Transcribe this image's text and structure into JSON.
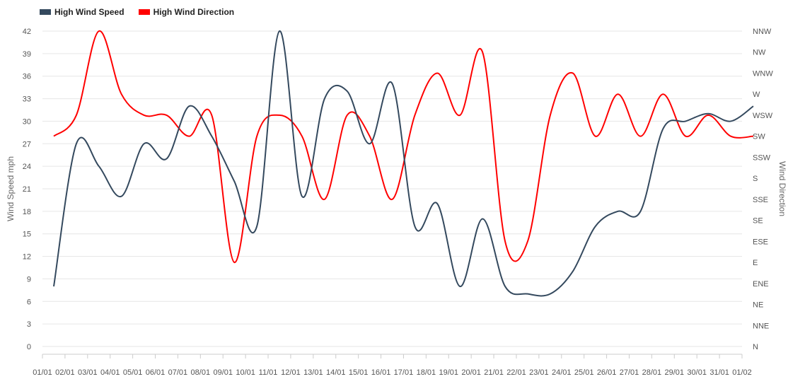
{
  "chart_data": {
    "type": "line",
    "legend_position": "top-left",
    "grid": true,
    "ylabel_left": "Wind Speed mph",
    "ylabel_right": "Wind Direction",
    "left_axis": {
      "ylim": [
        0,
        42
      ],
      "ticks": [
        "0",
        "3",
        "6",
        "9",
        "12",
        "15",
        "18",
        "21",
        "24",
        "27",
        "30",
        "33",
        "36",
        "39",
        "42"
      ]
    },
    "right_axis": {
      "ticks": [
        "N",
        "NNE",
        "NE",
        "ENE",
        "E",
        "ESE",
        "SE",
        "SSE",
        "S",
        "SSW",
        "SW",
        "WSW",
        "W",
        "WNW",
        "NW",
        "NNW"
      ]
    },
    "x_ticks": [
      "01/01",
      "02/01",
      "03/01",
      "04/01",
      "05/01",
      "06/01",
      "07/01",
      "08/01",
      "09/01",
      "10/01",
      "11/01",
      "12/01",
      "13/01",
      "14/01",
      "15/01",
      "16/01",
      "17/01",
      "18/01",
      "19/01",
      "20/01",
      "21/01",
      "22/01",
      "23/01",
      "24/01",
      "25/01",
      "26/01",
      "27/01",
      "28/01",
      "29/01",
      "30/01",
      "31/01",
      "01/02"
    ],
    "series": [
      {
        "name": "High Wind Speed",
        "color": "#34495e",
        "axis": "left",
        "values": [
          8,
          27,
          24,
          20,
          27,
          25,
          32,
          28,
          22,
          16,
          42,
          20,
          33,
          34,
          27,
          35,
          16,
          19,
          8,
          17,
          8,
          7,
          7,
          10,
          16,
          18,
          18,
          29,
          30,
          31,
          30,
          32
        ]
      },
      {
        "name": "High Wind Direction",
        "color": "#ff0000",
        "axis": "right",
        "values": [
          "SW",
          "WSW",
          "NNW",
          "W",
          "WSW",
          "WSW",
          "SW",
          "WSW",
          "E",
          "SW",
          "WSW",
          "SW",
          "SSE",
          "WSW",
          "SW",
          "SSE",
          "WSW",
          "WNW",
          "WSW",
          "NW",
          "ESE",
          "ESE",
          "WSW",
          "WNW",
          "SW",
          "W",
          "SW",
          "W",
          "SW",
          "WSW",
          "SW",
          "SW"
        ]
      }
    ]
  }
}
